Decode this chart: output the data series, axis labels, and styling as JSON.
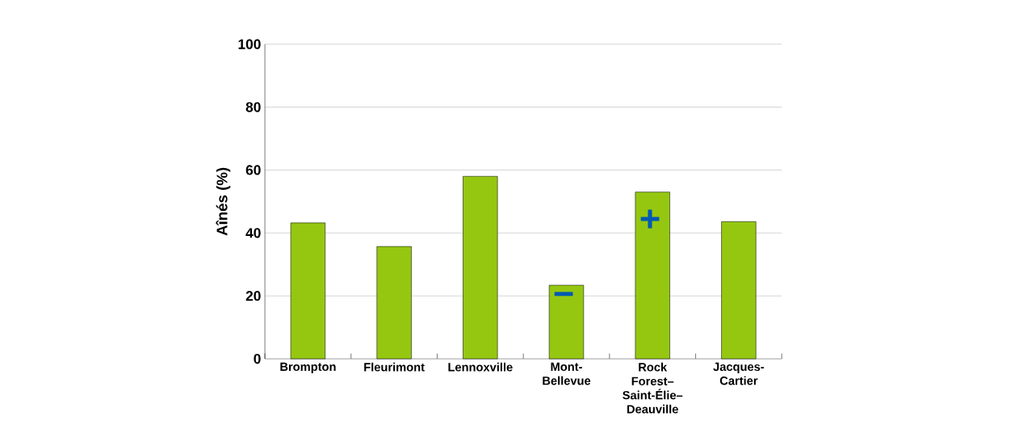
{
  "chart_data": {
    "type": "bar",
    "ylabel": "Aînés (%)",
    "categories": [
      "Brompton",
      "Fleurimont",
      "Lennoxville",
      "Mont-Bellevue",
      "Rock Forest–Saint-Élie–Deauville",
      "Jacques-Cartier"
    ],
    "values": [
      43.2,
      35.7,
      58,
      23.4,
      53,
      43.6
    ],
    "color": "#95c711",
    "ylim": [
      0,
      100
    ],
    "yticks": [
      0,
      20,
      40,
      60,
      80,
      100
    ],
    "grid": "y",
    "annotations": [
      "−",
      "+"
    ]
  }
}
